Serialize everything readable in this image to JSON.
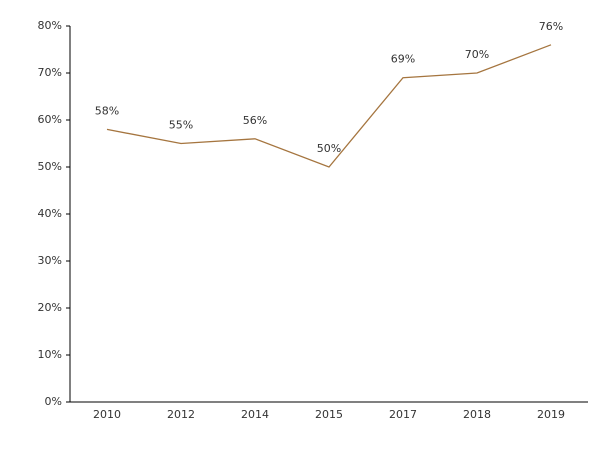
{
  "chart_data": {
    "type": "line",
    "categories": [
      "2010",
      "2012",
      "2014",
      "2015",
      "2017",
      "2018",
      "2019"
    ],
    "values": [
      58,
      55,
      56,
      50,
      69,
      70,
      76
    ],
    "value_labels": [
      "58%",
      "55%",
      "56%",
      "50%",
      "69%",
      "70%",
      "76%"
    ],
    "color": "#a5753f",
    "ylim": [
      0,
      80
    ],
    "yticks": [
      {
        "value": 0,
        "label": "0%"
      },
      {
        "value": 10,
        "label": "10%"
      },
      {
        "value": 20,
        "label": "20%"
      },
      {
        "value": 30,
        "label": "30%"
      },
      {
        "value": 40,
        "label": "40%"
      },
      {
        "value": 50,
        "label": "50%"
      },
      {
        "value": 60,
        "label": "60%"
      },
      {
        "value": 70,
        "label": "70%"
      },
      {
        "value": 80,
        "label": "80%"
      }
    ],
    "grid": false
  }
}
